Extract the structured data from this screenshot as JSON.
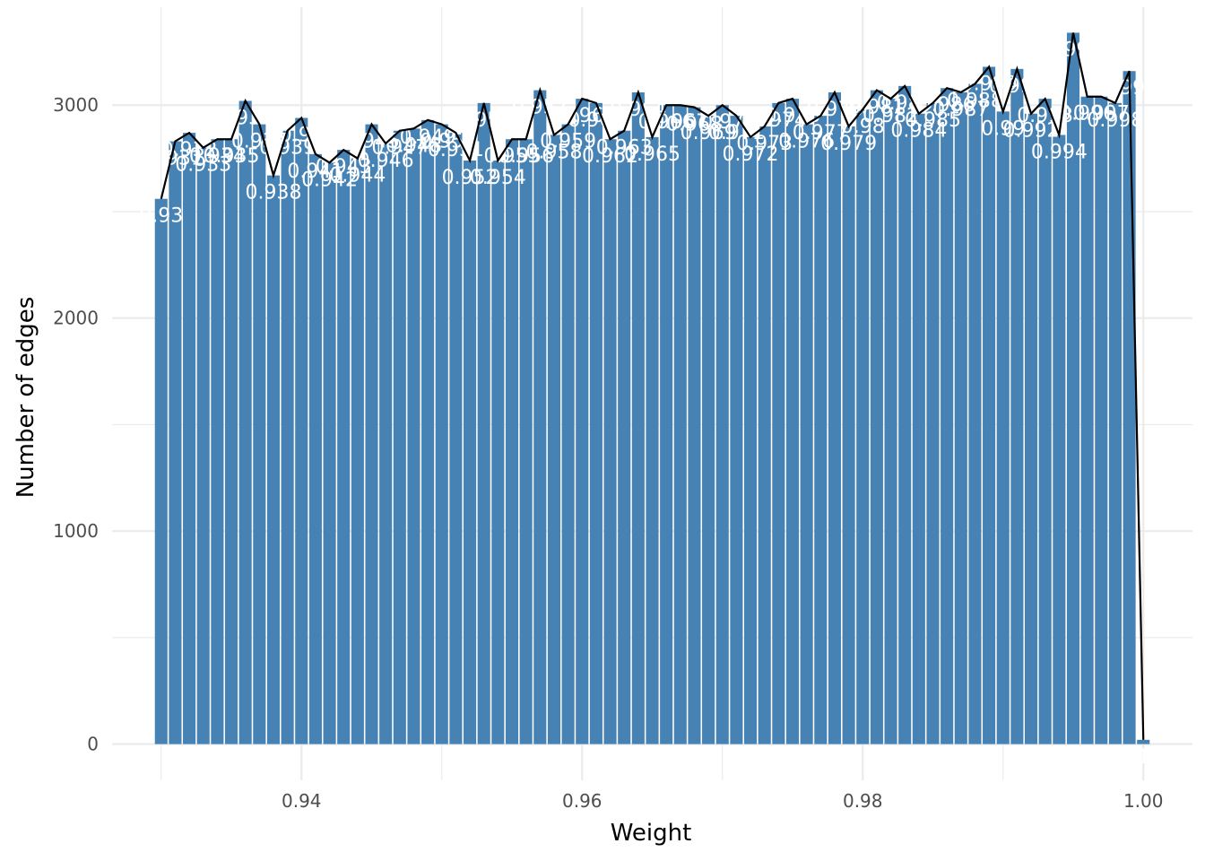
{
  "chart_data": {
    "type": "bar",
    "title": "",
    "xlabel": "Weight",
    "ylabel": "Number of edges",
    "xlim": [
      0.9265,
      1.0035
    ],
    "ylim": [
      -170,
      3460
    ],
    "x_ticks": [
      0.94,
      0.96,
      0.98,
      1.0
    ],
    "x_tick_labels": [
      "0.94",
      "0.96",
      "0.98",
      "1.00"
    ],
    "y_ticks": [
      0,
      1000,
      2000,
      3000
    ],
    "y_tick_labels": [
      "0",
      "1000",
      "2000",
      "3000"
    ],
    "grid": true,
    "bar_color": "#4682B4",
    "line_color": "#000000",
    "x": [
      0.93,
      0.931,
      0.932,
      0.933,
      0.934,
      0.935,
      0.936,
      0.937,
      0.938,
      0.939,
      0.94,
      0.941,
      0.942,
      0.943,
      0.944,
      0.945,
      0.946,
      0.947,
      0.948,
      0.949,
      0.95,
      0.951,
      0.952,
      0.953,
      0.954,
      0.955,
      0.956,
      0.957,
      0.958,
      0.959,
      0.96,
      0.961,
      0.962,
      0.963,
      0.964,
      0.965,
      0.966,
      0.967,
      0.968,
      0.969,
      0.97,
      0.971,
      0.972,
      0.973,
      0.974,
      0.975,
      0.976,
      0.977,
      0.978,
      0.979,
      0.98,
      0.981,
      0.982,
      0.983,
      0.984,
      0.985,
      0.986,
      0.987,
      0.988,
      0.989,
      0.99,
      0.991,
      0.992,
      0.993,
      0.994,
      0.995,
      0.996,
      0.997,
      0.998,
      0.999,
      1.0
    ],
    "values": [
      2560,
      2830,
      2870,
      2800,
      2840,
      2840,
      3020,
      2910,
      2670,
      2880,
      2940,
      2770,
      2730,
      2790,
      2750,
      2910,
      2820,
      2880,
      2890,
      2930,
      2910,
      2870,
      2740,
      3010,
      2740,
      2840,
      2840,
      3070,
      2860,
      2910,
      3030,
      3010,
      2840,
      2880,
      3060,
      2850,
      3000,
      3000,
      2990,
      2950,
      3000,
      2950,
      2850,
      2900,
      3010,
      3030,
      2910,
      2950,
      3060,
      2900,
      2980,
      3070,
      3030,
      3090,
      2960,
      3010,
      3080,
      3060,
      3100,
      3180,
      2970,
      3170,
      2960,
      3030,
      2860,
      3340,
      3040,
      3040,
      3010,
      3160,
      20
    ],
    "labels": [
      "0.93",
      "0.931",
      "0.932",
      "0.933",
      "0.934",
      "0.935",
      "0.936",
      "0.937",
      "0.938",
      "0.939",
      "0.94",
      "0.941",
      "0.942",
      "0.943",
      "0.944",
      "0.945",
      "0.946",
      "0.947",
      "0.948",
      "0.949",
      "0.95",
      "0.951",
      "0.952",
      "0.953",
      "0.954",
      "0.955",
      "0.956",
      "0.957",
      "0.958",
      "0.959",
      "0.96",
      "0.961",
      "0.962",
      "0.963",
      "0.964",
      "0.965",
      "0.966",
      "0.967",
      "0.968",
      "0.969",
      "0.97",
      "0.971",
      "0.972",
      "0.973",
      "0.974",
      "0.975",
      "0.976",
      "0.977",
      "0.978",
      "0.979",
      "0.98",
      "0.981",
      "0.982",
      "0.983",
      "0.984",
      "0.985",
      "0.986",
      "0.987",
      "0.988",
      "0.989",
      "0.99",
      "0.991",
      "0.992",
      "0.993",
      "0.994",
      "0.995",
      "0.996",
      "0.997",
      "0.998",
      "0.999",
      "1"
    ]
  }
}
